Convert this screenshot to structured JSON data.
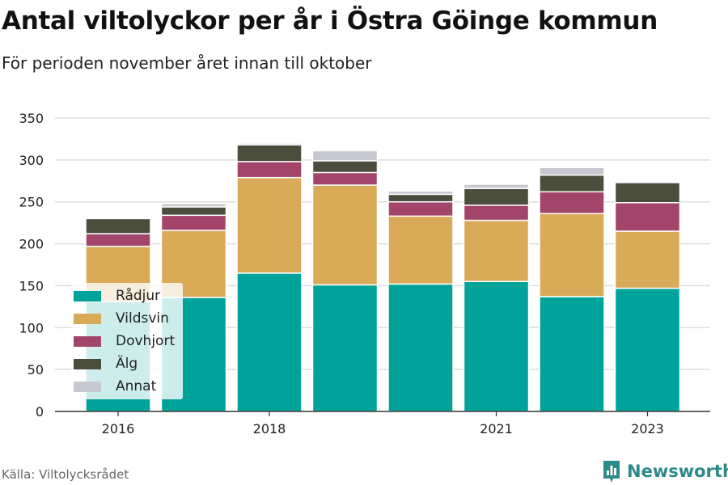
{
  "header": {
    "title": "Antal viltolyckor per år i Östra Göinge kommun",
    "subtitle": "För perioden november året innan till oktober"
  },
  "footer": {
    "source": "Källa: Viltolycksrådet",
    "brand": "Newsworthy",
    "brand_icon": "bar-chart-logo-icon"
  },
  "chart_data": {
    "type": "bar",
    "stacked": true,
    "categories": [
      "2016",
      "2017",
      "2018",
      "2019",
      "2020",
      "2021",
      "2022",
      "2023"
    ],
    "x_tick_labels": [
      "2016",
      "",
      "2018",
      "",
      "",
      "2021",
      "",
      "2023"
    ],
    "ylim": [
      0,
      350
    ],
    "yticks": [
      0,
      50,
      100,
      150,
      200,
      250,
      300,
      350
    ],
    "grid": true,
    "legend_position": "bottom-left",
    "series": [
      {
        "name": "Rådjur",
        "color": "#00a39a",
        "values": [
          131,
          136,
          165,
          151,
          152,
          155,
          137,
          147
        ]
      },
      {
        "name": "Vildsvin",
        "color": "#d9ab59",
        "values": [
          66,
          80,
          114,
          119,
          81,
          73,
          99,
          68
        ]
      },
      {
        "name": "Dovhjort",
        "color": "#a3446a",
        "values": [
          15,
          18,
          19,
          15,
          17,
          18,
          26,
          34
        ]
      },
      {
        "name": "Älg",
        "color": "#4b4d3d",
        "values": [
          18,
          10,
          20,
          14,
          9,
          20,
          20,
          24
        ]
      },
      {
        "name": "Annat",
        "color": "#c8c8d2",
        "values": [
          0,
          4,
          2,
          12,
          4,
          5,
          9,
          0
        ]
      }
    ]
  }
}
